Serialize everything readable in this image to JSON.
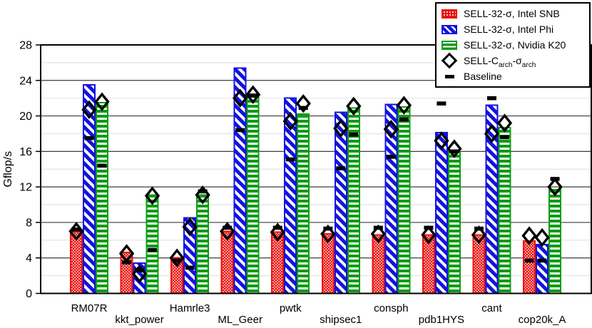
{
  "colors": {
    "snb_red": "#ed120b",
    "phi_blue": "#1213e0",
    "k20_green": "#0c9c14",
    "marker_black": "#000000",
    "major_grid": "#3c3c3c",
    "minor_grid": "#e4e4e4",
    "frame": "#000000"
  },
  "chart_data": {
    "type": "bar",
    "title": "",
    "xlabel": "",
    "ylabel": "Gflop/s",
    "ylim": [
      0,
      28
    ],
    "yticks": [
      0,
      4,
      8,
      12,
      16,
      20,
      24,
      28
    ],
    "minor_yticks": [
      2,
      6,
      10,
      14,
      18,
      22,
      26
    ],
    "grid": "on",
    "legend_position": "top-right",
    "categories": [
      "RM07R",
      "kkt_power",
      "Hamrle3",
      "ML_Geer",
      "pwtk",
      "shipsec1",
      "consph",
      "pdb1HYS",
      "cant",
      "cop20k_A"
    ],
    "series": [
      {
        "name": "SELL-32-σ, Intel SNB",
        "pattern": "dots",
        "color": "#ed120b",
        "values": [
          7.0,
          4.6,
          4.0,
          7.0,
          6.9,
          6.7,
          6.6,
          6.6,
          6.6,
          5.9
        ]
      },
      {
        "name": "SELL-32-σ, Intel Phi",
        "pattern": "diagonal",
        "color": "#1213e0",
        "values": [
          23.5,
          3.4,
          8.5,
          25.4,
          22.0,
          20.4,
          21.3,
          18.1,
          21.2,
          5.5
        ]
      },
      {
        "name": "SELL-32-σ, Nvidia K20",
        "pattern": "horizontal",
        "color": "#0c9c14",
        "values": [
          21.5,
          11.1,
          11.1,
          22.3,
          20.2,
          20.9,
          21.0,
          15.9,
          18.7,
          11.7
        ]
      }
    ],
    "markers": {
      "sell_c_arch": {
        "label_pre": "SELL-C",
        "label_sub1": "arch",
        "label_mid": "-σ",
        "label_sub2": "arch",
        "shape": "open-diamond",
        "values_per_category": [
          [
            7.0,
            20.7,
            21.6
          ],
          [
            4.5,
            2.2,
            11.0
          ],
          [
            4.0,
            7.5,
            11.1
          ],
          [
            7.0,
            22.0,
            22.4
          ],
          [
            6.9,
            19.4,
            21.4
          ],
          [
            6.7,
            18.6,
            21.1
          ],
          [
            6.7,
            18.5,
            21.2
          ],
          [
            6.6,
            17.2,
            16.3
          ],
          [
            6.6,
            18.0,
            19.2
          ],
          [
            6.5,
            6.3,
            12.0
          ]
        ]
      },
      "baseline": {
        "label": "Baseline",
        "shape": "black-dash",
        "values_per_category": [
          [
            7.2,
            17.5,
            14.4
          ],
          [
            3.5,
            2.6,
            4.9
          ],
          [
            3.7,
            2.9,
            11.5
          ],
          [
            7.4,
            18.4,
            22.3
          ],
          [
            7.4,
            15.1,
            20.9
          ],
          [
            7.3,
            14.1,
            17.9
          ],
          [
            7.4,
            15.4,
            19.6
          ],
          [
            7.4,
            21.4,
            16.0
          ],
          [
            7.3,
            22.0,
            17.6
          ],
          [
            3.7,
            3.7,
            12.9
          ]
        ]
      }
    }
  },
  "legend": {
    "entries": [
      {
        "label": "SELL-32-σ, Intel SNB"
      },
      {
        "label": "SELL-32-σ, Intel Phi"
      },
      {
        "label": "SELL-32-σ, Nvidia K20"
      },
      {
        "label": "SELL-C-σ arch"
      },
      {
        "label": "Baseline"
      }
    ]
  }
}
